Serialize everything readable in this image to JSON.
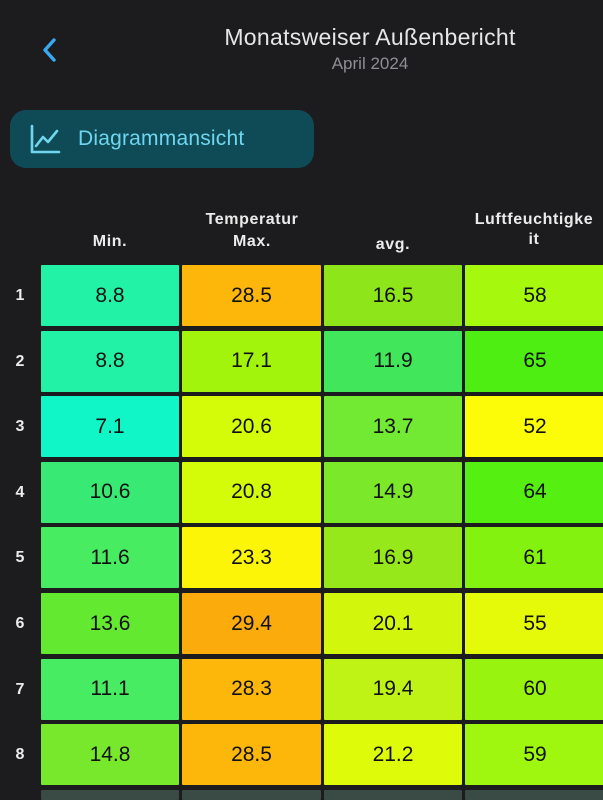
{
  "header": {
    "back_icon": "chevron-left-icon",
    "title": "Monatsweiser Außenbericht",
    "subtitle": "April 2024"
  },
  "chart_button": {
    "icon": "line-chart-icon",
    "label": "Diagrammansicht",
    "accent": "#6fd6ee",
    "background": "#0f4a57"
  },
  "table": {
    "group_headers": [
      "Temperatur",
      "Luftfeuchtigke\nit"
    ],
    "columns": [
      "Min.",
      "Max.",
      "avg.",
      ""
    ],
    "rows": [
      {
        "day": "1",
        "values": [
          "8.8",
          "28.5",
          "16.5",
          "58"
        ],
        "colors": [
          "#22f2a6",
          "#fcb70a",
          "#8ee519",
          "#a6f90c"
        ]
      },
      {
        "day": "2",
        "values": [
          "8.8",
          "17.1",
          "11.9",
          "65"
        ],
        "colors": [
          "#22f2a6",
          "#a2f40c",
          "#41e65a",
          "#4fee12"
        ]
      },
      {
        "day": "3",
        "values": [
          "7.1",
          "20.6",
          "13.7",
          "52"
        ],
        "colors": [
          "#11f6c6",
          "#d4fc08",
          "#72e932",
          "#fcfc08"
        ]
      },
      {
        "day": "4",
        "values": [
          "10.6",
          "20.8",
          "14.9",
          "64"
        ],
        "colors": [
          "#38ea74",
          "#d4fc08",
          "#7ce82a",
          "#56ef12"
        ]
      },
      {
        "day": "5",
        "values": [
          "11.6",
          "23.3",
          "16.9",
          "61"
        ],
        "colors": [
          "#47ec60",
          "#fcf508",
          "#96e81a",
          "#82f20e"
        ]
      },
      {
        "day": "6",
        "values": [
          "13.6",
          "29.4",
          "20.1",
          "55"
        ],
        "colors": [
          "#63e930",
          "#fcab0c",
          "#d2f70c",
          "#e4fa08"
        ]
      },
      {
        "day": "7",
        "values": [
          "11.1",
          "28.3",
          "19.4",
          "60"
        ],
        "colors": [
          "#47ec62",
          "#fcb70a",
          "#bff316",
          "#98f40e"
        ]
      },
      {
        "day": "8",
        "values": [
          "14.8",
          "28.5",
          "21.2",
          "59"
        ],
        "colors": [
          "#78e82c",
          "#fcb70a",
          "#defc0a",
          "#9ff60e"
        ]
      }
    ]
  }
}
